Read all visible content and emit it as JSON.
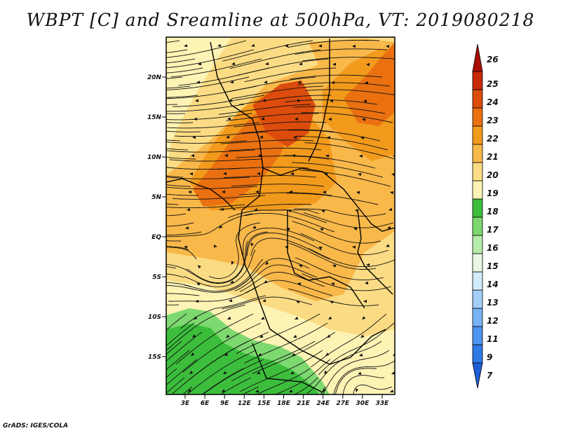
{
  "title": "WBPT [C] and Sreamline at 500hPa, VT: 2019080218",
  "credit": "GrADS: IGES/COLA",
  "lat_labels": [
    "20N",
    "15N",
    "10N",
    "5N",
    "EQ",
    "5S",
    "10S",
    "15S"
  ],
  "lon_labels": [
    "3E",
    "6E",
    "9E",
    "12E",
    "15E",
    "18E",
    "21E",
    "24E",
    "27E",
    "30E",
    "33E"
  ],
  "colorbar": {
    "labels": [
      "7",
      "9",
      "11",
      "12",
      "13",
      "14",
      "15",
      "16",
      "17",
      "18",
      "19",
      "20",
      "21",
      "22",
      "23",
      "24",
      "25",
      "26"
    ],
    "colors": [
      "#1e5fd6",
      "#2f79e6",
      "#4d95f0",
      "#77b4f6",
      "#a3cff9",
      "#d3ecfb",
      "#e8f8e4",
      "#b6ecaa",
      "#7dd870",
      "#3cbe3c",
      "#fdf3b4",
      "#fbdc84",
      "#f8b84a",
      "#f29a1c",
      "#ea7010",
      "#dc4c0c",
      "#c72a08",
      "#a80f06"
    ]
  },
  "field_colors": {
    "green_dark": "#3cbe3c",
    "green_light": "#7dd870",
    "cream": "#fdf3b4",
    "yellow": "#fbdc84",
    "light_orange": "#f8b84a",
    "orange": "#f29a1c",
    "dark_orange": "#ea7010",
    "red_orange": "#dc4c0c"
  }
}
